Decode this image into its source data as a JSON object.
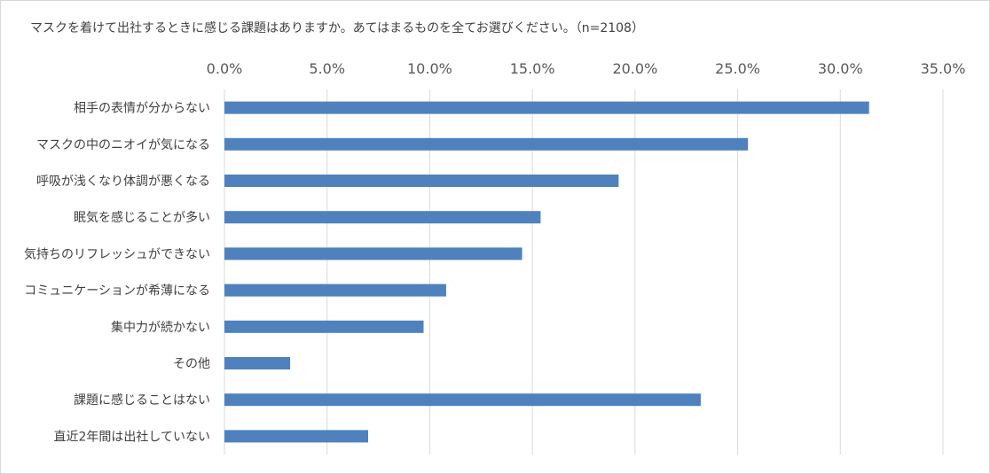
{
  "chart_data": {
    "type": "bar",
    "orientation": "horizontal",
    "title": "マスクを着けて出社するときに感じる課題はありますか。あてはまるものを全てお選びください。（n=2108）",
    "categories": [
      "相手の表情が分からない",
      "マスクの中のニオイが気になる",
      "呼吸が浅くなり体調が悪くなる",
      "眠気を感じることが多い",
      "気持ちのリフレッシュができない",
      "コミュニケーションが希薄になる",
      "集中力が続かない",
      "その他",
      "課題に感じることはない",
      "直近2年間は出社していない"
    ],
    "values": [
      31.4,
      25.5,
      19.2,
      15.4,
      14.5,
      10.8,
      9.7,
      3.2,
      23.2,
      7.0
    ],
    "xlim": [
      0,
      35
    ],
    "xticks": [
      "0.0%",
      "5.0%",
      "10.0%",
      "15.0%",
      "20.0%",
      "25.0%",
      "30.0%",
      "35.0%"
    ],
    "xaxis_position": "top",
    "grid": true,
    "legend": "none",
    "bar_color": "#4f81bd",
    "grid_color": "#d9d9d9"
  }
}
